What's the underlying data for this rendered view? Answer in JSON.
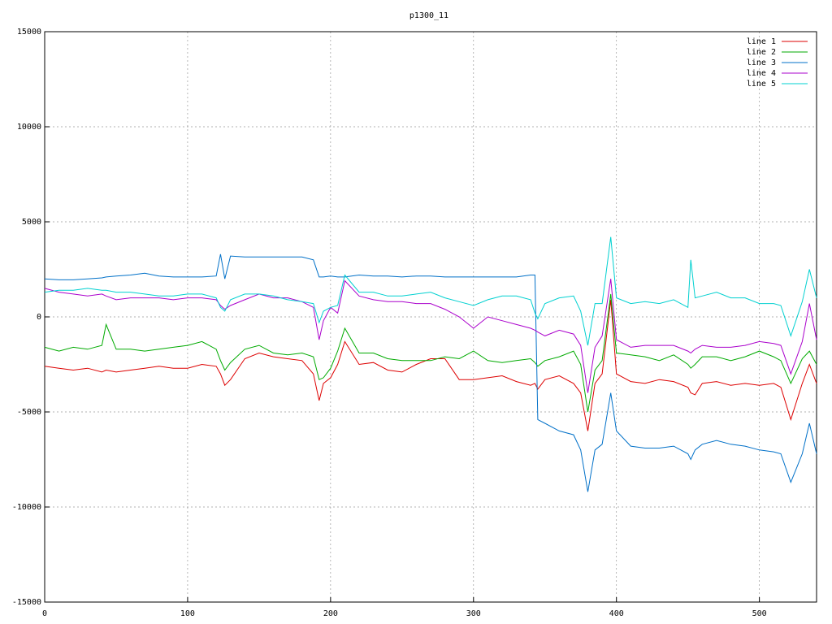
{
  "chart_data": {
    "type": "line",
    "title": "p1300_11",
    "x": [
      0,
      10,
      20,
      30,
      40,
      43,
      50,
      60,
      70,
      80,
      90,
      100,
      110,
      120,
      123,
      126,
      130,
      140,
      150,
      160,
      170,
      180,
      188,
      192,
      195,
      200,
      205,
      210,
      220,
      230,
      240,
      250,
      260,
      270,
      280,
      290,
      300,
      310,
      320,
      330,
      340,
      343,
      345,
      350,
      360,
      370,
      375,
      380,
      385,
      390,
      396,
      400,
      410,
      420,
      430,
      440,
      450,
      452,
      455,
      460,
      470,
      480,
      490,
      500,
      510,
      515,
      522,
      530,
      535,
      540
    ],
    "series": [
      {
        "name": "line 1",
        "color": "#dd0000",
        "values": [
          -2600,
          -2700,
          -2800,
          -2700,
          -2900,
          -2800,
          -2900,
          -2800,
          -2700,
          -2600,
          -2700,
          -2700,
          -2500,
          -2600,
          -3000,
          -3600,
          -3300,
          -2200,
          -1900,
          -2100,
          -2200,
          -2300,
          -3000,
          -4400,
          -3500,
          -3200,
          -2500,
          -1300,
          -2500,
          -2400,
          -2800,
          -2900,
          -2500,
          -2200,
          -2200,
          -3300,
          -3300,
          -3200,
          -3100,
          -3400,
          -3600,
          -3500,
          -3800,
          -3300,
          -3100,
          -3500,
          -4000,
          -6000,
          -3500,
          -3000,
          900,
          -3000,
          -3400,
          -3500,
          -3300,
          -3400,
          -3700,
          -4000,
          -4100,
          -3500,
          -3400,
          -3600,
          -3500,
          -3600,
          -3500,
          -3700,
          -5400,
          -3500,
          -2500,
          -3500
        ]
      },
      {
        "name": "line 2",
        "color": "#00aa00",
        "values": [
          -1600,
          -1800,
          -1600,
          -1700,
          -1500,
          -400,
          -1700,
          -1700,
          -1800,
          -1700,
          -1600,
          -1500,
          -1300,
          -1700,
          -2300,
          -2800,
          -2400,
          -1700,
          -1500,
          -1900,
          -2000,
          -1900,
          -2100,
          -3300,
          -3200,
          -2700,
          -1800,
          -600,
          -1900,
          -1900,
          -2200,
          -2300,
          -2300,
          -2300,
          -2100,
          -2200,
          -1800,
          -2300,
          -2400,
          -2300,
          -2200,
          -2400,
          -2600,
          -2300,
          -2100,
          -1800,
          -2500,
          -5000,
          -2800,
          -2300,
          1200,
          -1900,
          -2000,
          -2100,
          -2300,
          -2000,
          -2500,
          -2700,
          -2500,
          -2100,
          -2100,
          -2300,
          -2100,
          -1800,
          -2100,
          -2300,
          -3500,
          -2200,
          -1800,
          -2500
        ]
      },
      {
        "name": "line 3",
        "color": "#0070c8",
        "values": [
          2000,
          1950,
          1950,
          2000,
          2050,
          2100,
          2150,
          2200,
          2300,
          2150,
          2100,
          2100,
          2100,
          2150,
          3300,
          2000,
          3200,
          3150,
          3150,
          3150,
          3150,
          3150,
          3000,
          2100,
          2100,
          2150,
          2100,
          2100,
          2200,
          2150,
          2150,
          2100,
          2150,
          2150,
          2100,
          2100,
          2100,
          2100,
          2100,
          2100,
          2200,
          2200,
          -5400,
          -5600,
          -6000,
          -6200,
          -7000,
          -9200,
          -7000,
          -6700,
          -4000,
          -6000,
          -6800,
          -6900,
          -6900,
          -6800,
          -7200,
          -7500,
          -7000,
          -6700,
          -6500,
          -6700,
          -6800,
          -7000,
          -7100,
          -7200,
          -8700,
          -7200,
          -5600,
          -7200
        ]
      },
      {
        "name": "line 4",
        "color": "#aa00cc",
        "values": [
          1500,
          1300,
          1200,
          1100,
          1200,
          1100,
          900,
          1000,
          1000,
          1000,
          900,
          1000,
          1000,
          900,
          600,
          400,
          600,
          900,
          1200,
          1000,
          1000,
          800,
          500,
          -1200,
          -200,
          500,
          200,
          1900,
          1100,
          900,
          800,
          800,
          700,
          700,
          400,
          0,
          -600,
          0,
          -200,
          -400,
          -600,
          -700,
          -800,
          -1000,
          -700,
          -900,
          -1500,
          -4000,
          -1600,
          -1000,
          2000,
          -1200,
          -1600,
          -1500,
          -1500,
          -1500,
          -1800,
          -1900,
          -1700,
          -1500,
          -1600,
          -1600,
          -1500,
          -1300,
          -1400,
          -1500,
          -3000,
          -1300,
          700,
          -1200
        ]
      },
      {
        "name": "line 5",
        "color": "#00d0d0",
        "values": [
          1300,
          1400,
          1400,
          1500,
          1400,
          1400,
          1300,
          1300,
          1200,
          1100,
          1100,
          1200,
          1200,
          1000,
          500,
          300,
          900,
          1200,
          1200,
          1100,
          900,
          800,
          700,
          -300,
          300,
          500,
          600,
          2200,
          1300,
          1300,
          1100,
          1100,
          1200,
          1300,
          1000,
          800,
          600,
          900,
          1100,
          1100,
          900,
          200,
          -100,
          700,
          1000,
          1100,
          300,
          -1500,
          700,
          700,
          4200,
          1000,
          700,
          800,
          700,
          900,
          500,
          3000,
          1000,
          1100,
          1300,
          1000,
          1000,
          700,
          700,
          600,
          -1000,
          800,
          2500,
          1000
        ]
      }
    ],
    "xlim": [
      0,
      540
    ],
    "xticks": [
      0,
      100,
      200,
      300,
      400,
      500
    ],
    "ylim": [
      -15000,
      15000
    ],
    "yticks": [
      -15000,
      -10000,
      -5000,
      0,
      5000,
      10000,
      15000
    ],
    "grid": true,
    "legend": "top-right"
  }
}
